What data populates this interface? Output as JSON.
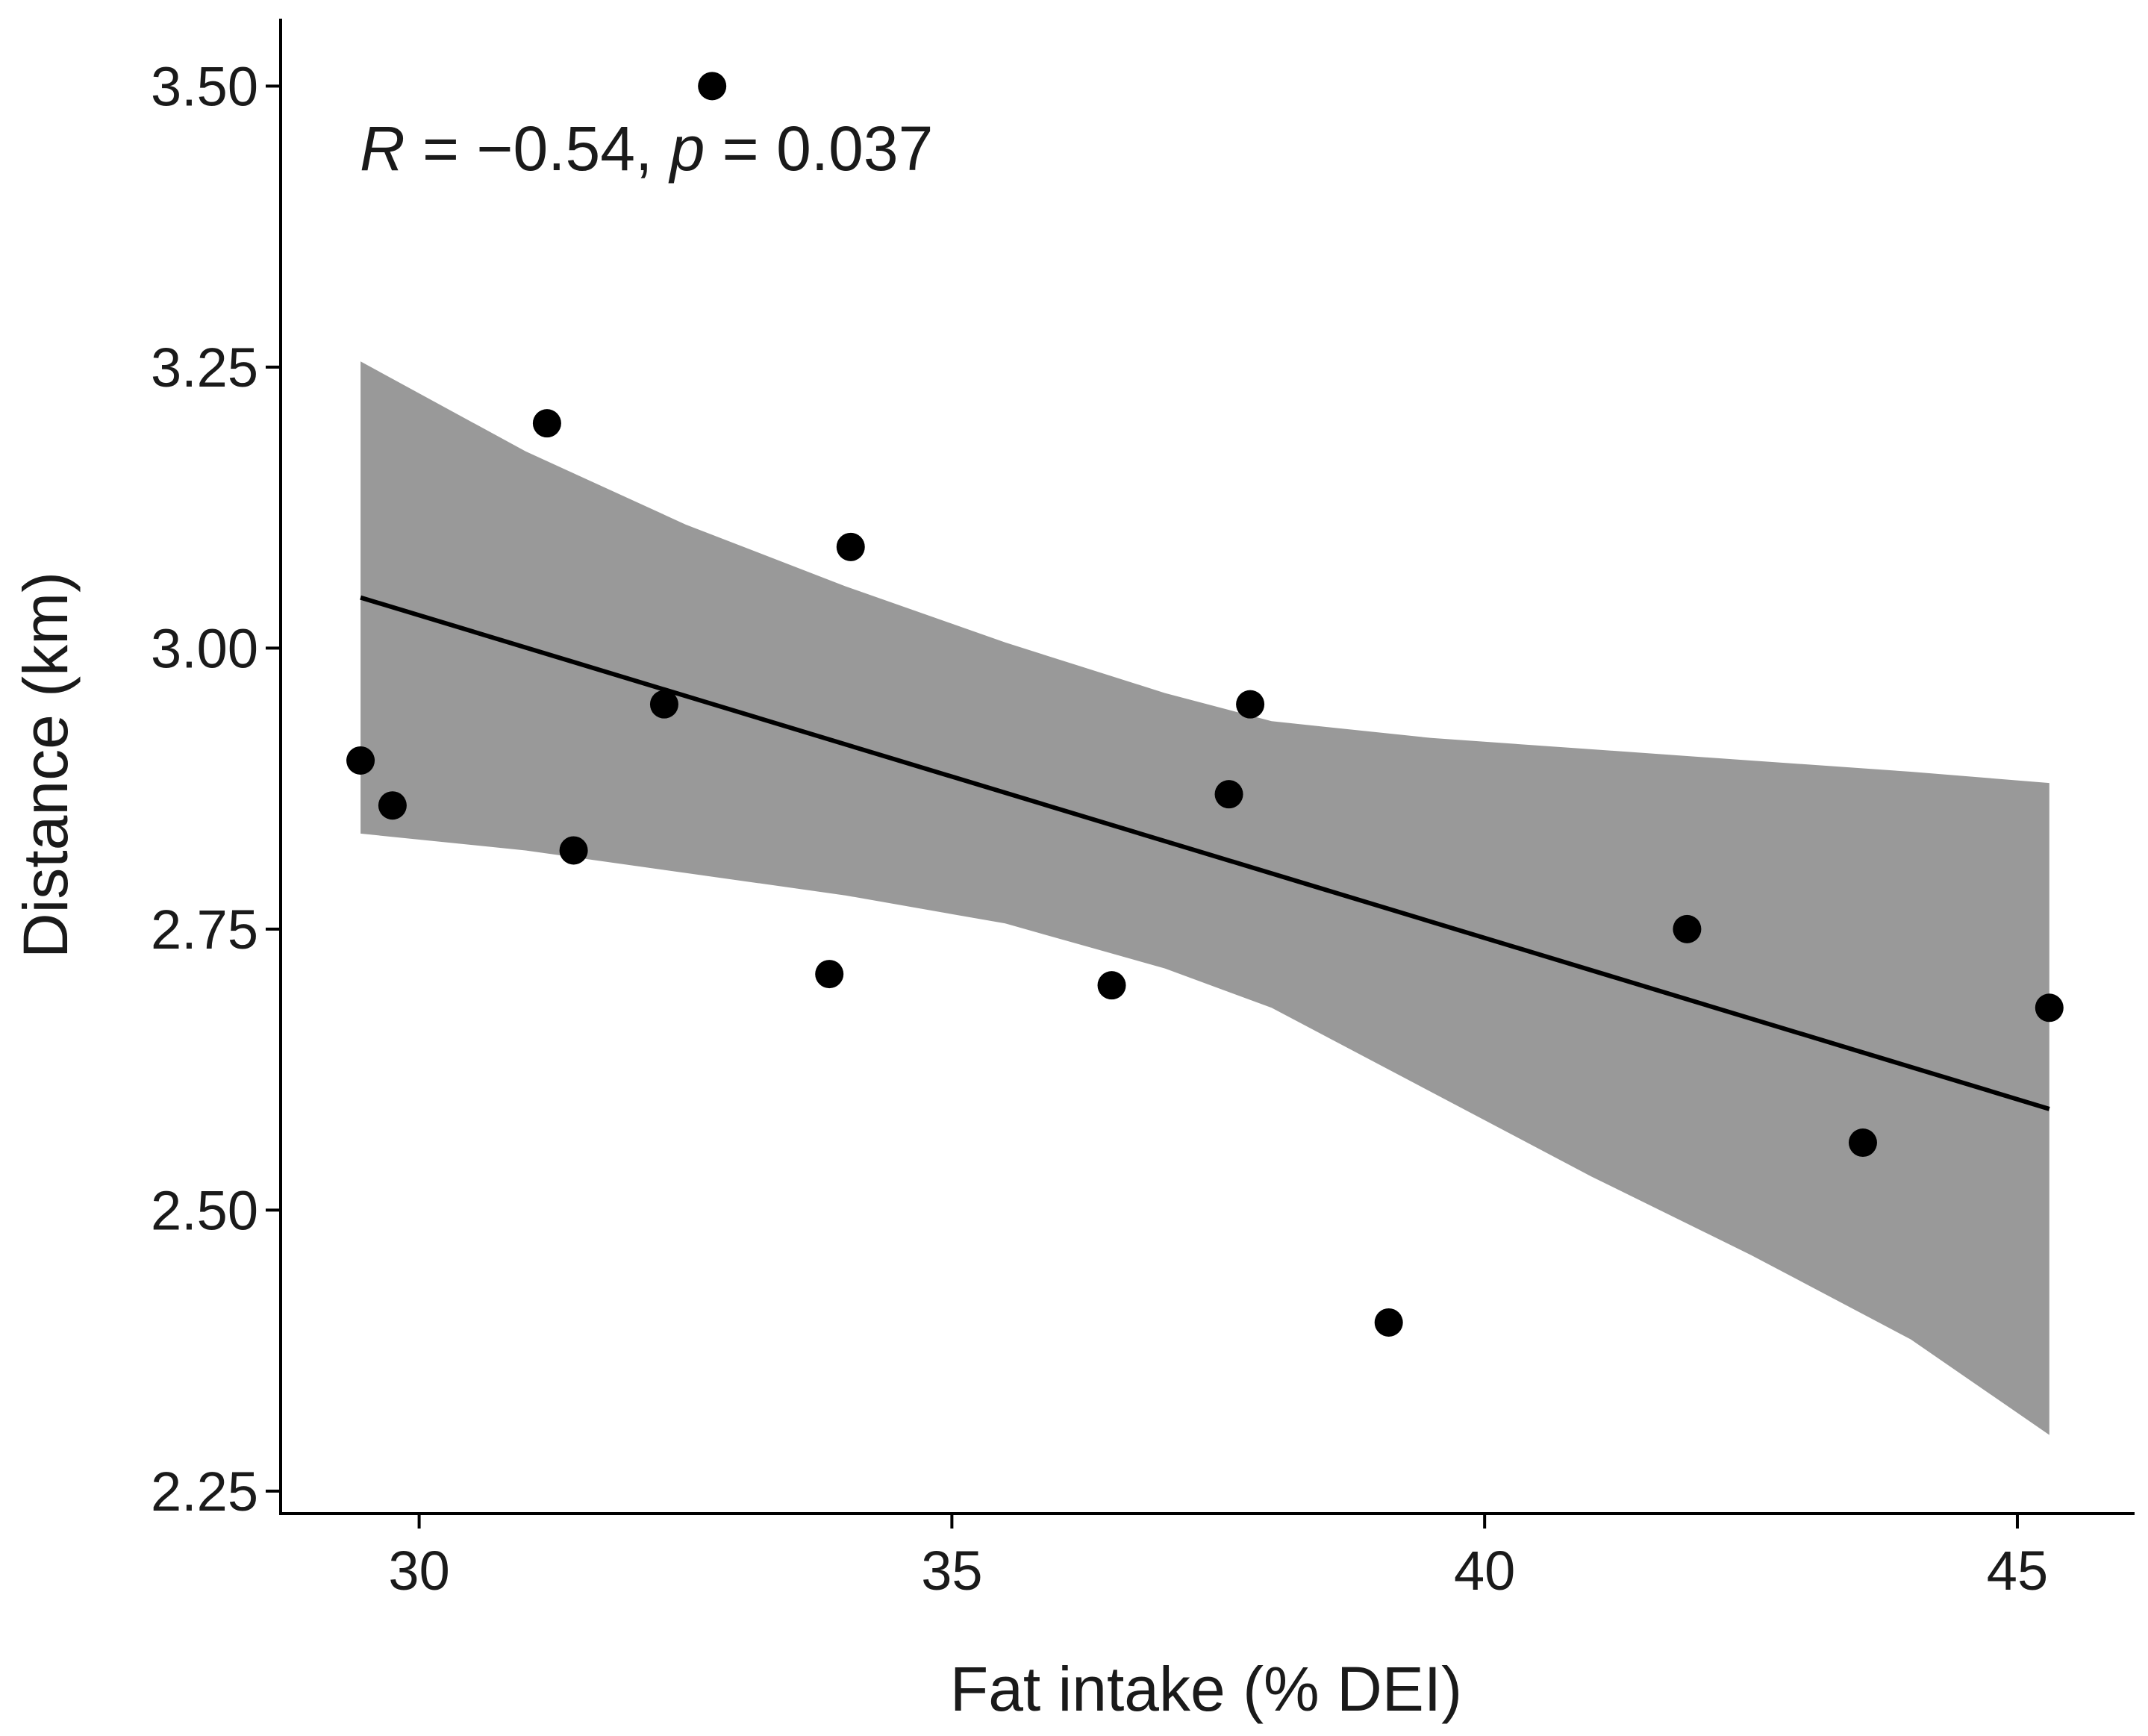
{
  "chart_data": {
    "type": "scatter",
    "title": "",
    "xlabel": "Fat intake (% DEI)",
    "ylabel": "Distance (km)",
    "xlim": [
      28.7,
      46.1
    ],
    "ylim": [
      2.23,
      3.56
    ],
    "xticks": [
      30,
      35,
      40,
      45
    ],
    "xtick_labels": [
      "30",
      "35",
      "40",
      "45"
    ],
    "yticks": [
      2.25,
      2.5,
      2.75,
      3.0,
      3.25,
      3.5
    ],
    "ytick_labels": [
      "2.25",
      "2.50",
      "2.75",
      "3.00",
      "3.25",
      "3.50"
    ],
    "grid": false,
    "legend": "none",
    "annotation": {
      "r_symbol": "R",
      "r_text": " = −0.54, ",
      "p_symbol": "p",
      "p_text": " = 0.037"
    },
    "points": {
      "x": [
        29.45,
        29.75,
        31.2,
        31.45,
        32.3,
        32.75,
        33.85,
        34.05,
        36.5,
        37.6,
        37.8,
        39.1,
        41.9,
        43.55,
        45.3
      ],
      "y": [
        2.9,
        2.86,
        3.2,
        2.82,
        2.95,
        3.5,
        2.71,
        3.09,
        2.7,
        2.87,
        2.95,
        2.4,
        2.75,
        2.56,
        2.68
      ]
    },
    "fit_line": {
      "x": [
        29.45,
        45.3
      ],
      "y": [
        3.045,
        2.59
      ]
    },
    "confidence_band": {
      "x": [
        29.45,
        31.0,
        32.5,
        34.0,
        35.5,
        37.0,
        38.0,
        39.5,
        41.0,
        42.5,
        44.0,
        45.3
      ],
      "upper": [
        3.255,
        3.175,
        3.11,
        3.055,
        3.005,
        2.96,
        2.935,
        2.92,
        2.91,
        2.9,
        2.89,
        2.88
      ],
      "lower": [
        2.835,
        2.82,
        2.8,
        2.78,
        2.755,
        2.715,
        2.68,
        2.605,
        2.53,
        2.46,
        2.385,
        2.3
      ]
    },
    "colors": {
      "points": "#000000",
      "fit_line": "#000000",
      "band": "#999999",
      "axis": "#000000"
    }
  }
}
